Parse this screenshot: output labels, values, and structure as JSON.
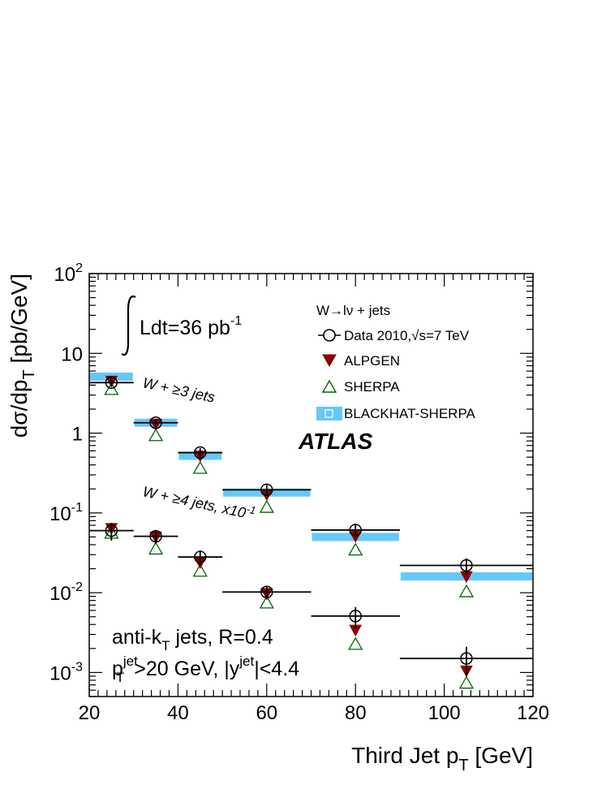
{
  "chart_data": {
    "type": "scatter",
    "title": "",
    "xlabel": "Third Jet p",
    "xlabel_sub": "T",
    "xlabel_unit": " [GeV]",
    "ylabel": "dσ/dp",
    "ylabel_sub": "T",
    "ylabel_unit": " [pb/GeV]",
    "xlim": [
      20,
      120
    ],
    "ylim": [
      0.0005,
      100
    ],
    "yscale": "log",
    "grid": false,
    "legend_position": "top-right",
    "x_ticks": [
      "20",
      "40",
      "60",
      "80",
      "100",
      "120"
    ],
    "y_ticks": [
      {
        "base": "10",
        "exp": "2"
      },
      {
        "base": "10",
        "exp": ""
      },
      {
        "base": "1",
        "exp": ""
      },
      {
        "base": "10",
        "exp": "-1"
      },
      {
        "base": "10",
        "exp": "-2"
      },
      {
        "base": "10",
        "exp": "-3"
      }
    ],
    "legend": {
      "header": "W→lν + jets",
      "entries": [
        "Data 2010,√s=7 TeV",
        "ALPGEN",
        "SHERPA",
        "BLACKHAT-SHERPA"
      ]
    },
    "annotations": {
      "lumi": "Ldt=36 pb",
      "lumi_exp": "-1",
      "atlas": "ATLAS",
      "jets3": "W + ≥3 jets",
      "jets4": "W + ≥4 jets, x10",
      "jets4_exp": "-1",
      "algo_1": "anti-k",
      "algo_1_sub": "T",
      "algo_2": " jets, R=0.4",
      "cut_1": "p",
      "cut_1_sup": "jet",
      "cut_1_sub": "T",
      "cut_2": ">20 GeV, |y",
      "cut_2_sup": "jet",
      "cut_3": "|<4.4"
    },
    "colors": {
      "data": "#000000",
      "alpgen": "#8b0000",
      "sherpa": "#006400",
      "blackhat": "#66c8f8"
    },
    "series": [
      {
        "name": "W + ≥3 jets",
        "bins": [
          [
            20,
            30
          ],
          [
            30,
            40
          ],
          [
            40,
            50
          ],
          [
            50,
            70
          ],
          [
            70,
            90
          ],
          [
            90,
            120
          ]
        ],
        "x": [
          25,
          35,
          45,
          60,
          80,
          105
        ],
        "data": [
          4.3,
          1.35,
          0.57,
          0.195,
          0.061,
          0.022
        ],
        "data_err": [
          0.5,
          0.16,
          0.08,
          0.03,
          0.011,
          0.005
        ],
        "alpgen": [
          4.5,
          1.3,
          0.52,
          0.17,
          0.051,
          0.016
        ],
        "sherpa": [
          3.6,
          0.95,
          0.37,
          0.12,
          0.035,
          0.0105
        ],
        "blackhat": [
          5.1,
          1.35,
          0.52,
          0.18,
          0.05,
          0.016
        ]
      },
      {
        "name": "W + ≥4 jets, x10-1",
        "bins": [
          [
            20,
            30
          ],
          [
            30,
            40
          ],
          [
            40,
            50
          ],
          [
            50,
            70
          ],
          [
            70,
            90
          ],
          [
            90,
            120
          ]
        ],
        "x": [
          25,
          35,
          45,
          60,
          80,
          105
        ],
        "data": [
          0.06,
          0.051,
          0.028,
          0.0102,
          0.0051,
          0.0015
        ],
        "data_err": [
          0.015,
          0.01,
          0.006,
          0.002,
          0.0015,
          0.0006
        ],
        "alpgen": [
          0.064,
          0.05,
          0.024,
          0.0098,
          0.0034,
          0.00105
        ],
        "sherpa": [
          0.057,
          0.036,
          0.019,
          0.0076,
          0.0023,
          0.00075
        ]
      }
    ]
  }
}
